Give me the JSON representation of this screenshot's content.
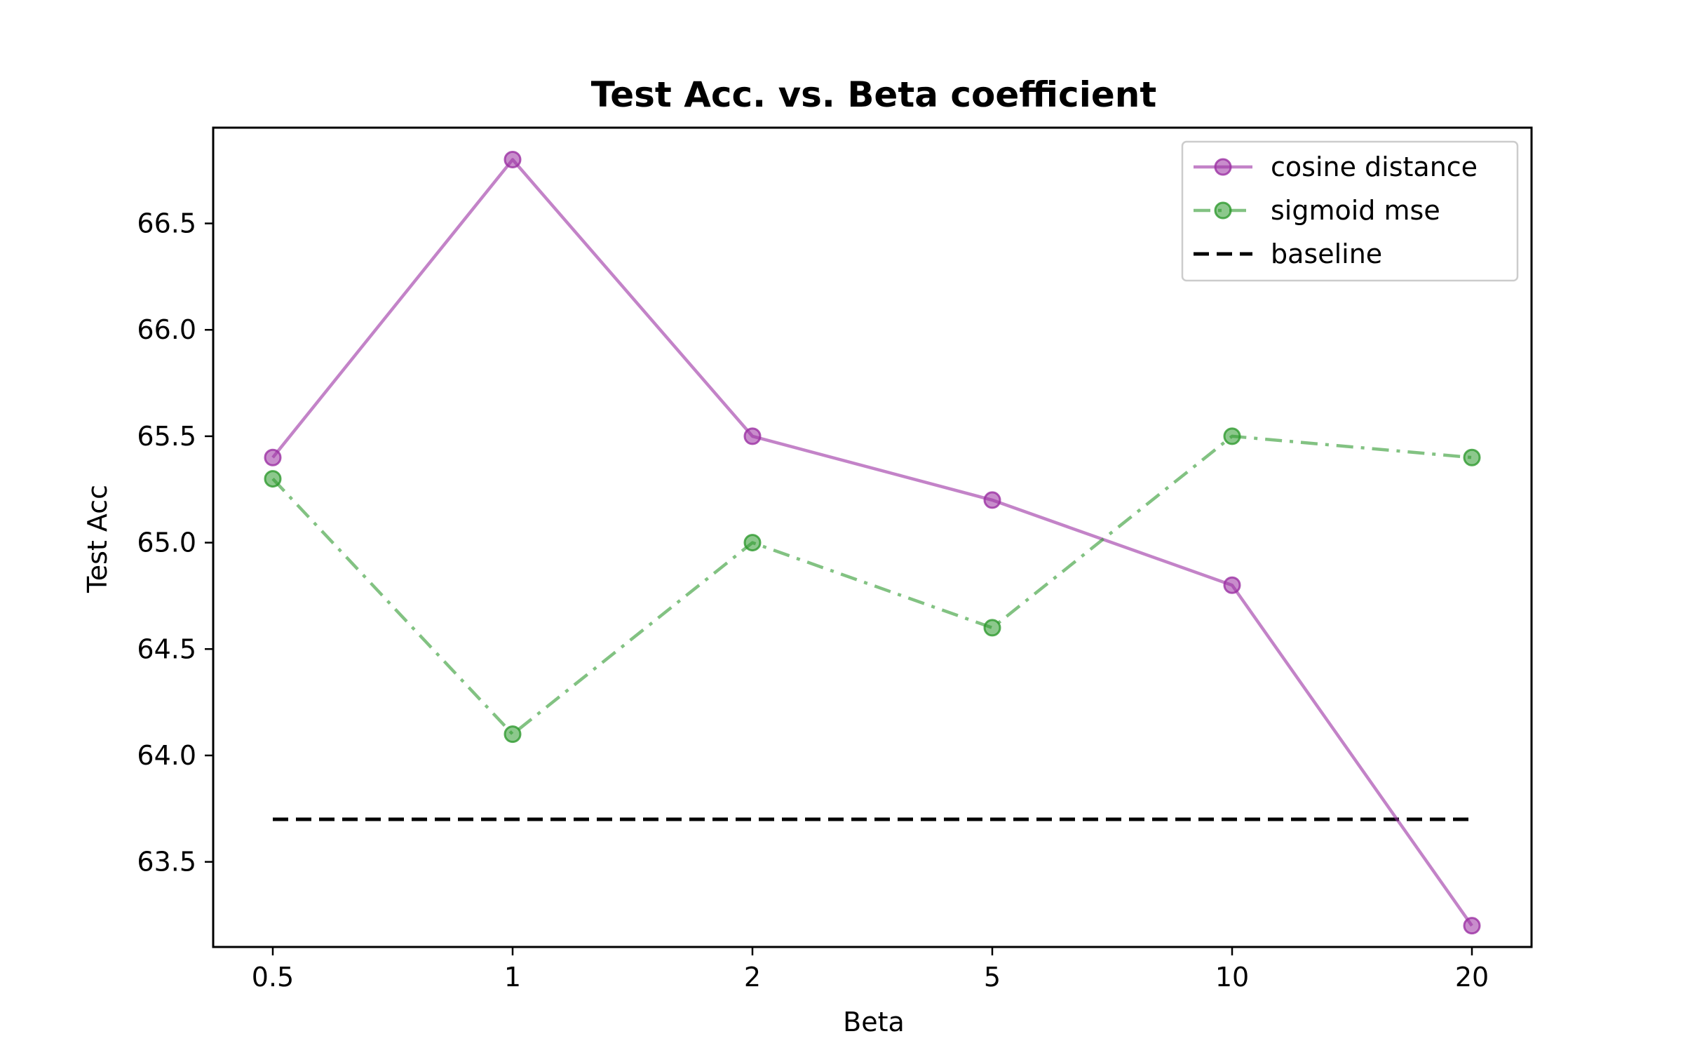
{
  "chart_data": {
    "type": "line",
    "title": "Test Acc. vs. Beta coefficient",
    "xlabel": "Beta",
    "ylabel": "Test Acc",
    "categories": [
      "0.5",
      "1",
      "2",
      "5",
      "10",
      "20"
    ],
    "ylim": [
      63.1,
      66.95
    ],
    "yticks": [
      "63.5",
      "64.0",
      "64.5",
      "65.0",
      "65.5",
      "66.0",
      "66.5"
    ],
    "grid": false,
    "legend_position": "top-right",
    "series": [
      {
        "name": "cosine distance",
        "values": [
          65.4,
          66.8,
          65.5,
          65.2,
          64.8,
          63.2
        ],
        "color": "#9b30a3",
        "line_style": "solid",
        "marker": "circle"
      },
      {
        "name": "sigmoid mse",
        "values": [
          65.3,
          64.1,
          65.0,
          64.6,
          65.5,
          65.4
        ],
        "color": "#2e9a2e",
        "line_style": "dashdot",
        "marker": "circle"
      },
      {
        "name": "baseline",
        "values": [
          63.7,
          63.7,
          63.7,
          63.7,
          63.7,
          63.7
        ],
        "color": "#000000",
        "line_style": "dashed",
        "marker": "none"
      }
    ]
  }
}
